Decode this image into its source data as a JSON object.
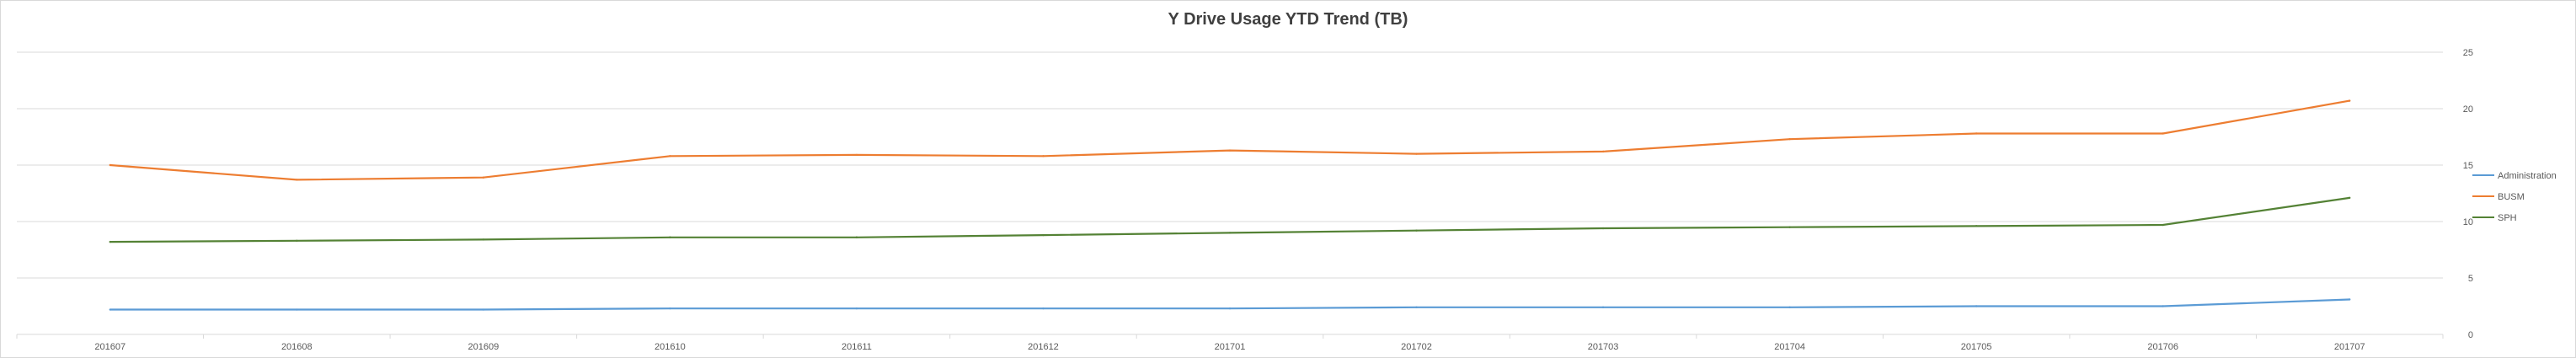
{
  "chart_data": {
    "type": "line",
    "title": "Y Drive Usage YTD Trend (TB)",
    "xlabel": "",
    "ylabel": "",
    "categories": [
      "201607",
      "201608",
      "201609",
      "201610",
      "201611",
      "201612",
      "201701",
      "201702",
      "201703",
      "201704",
      "201705",
      "201706",
      "201707"
    ],
    "y_axis": {
      "position": "right",
      "ylim": [
        0,
        25
      ],
      "ticks": [
        0,
        5,
        10,
        15,
        20,
        25
      ]
    },
    "grid": true,
    "legend": {
      "placement": "right"
    },
    "series": [
      {
        "name": "Administration",
        "color": "#5b9bd5",
        "values": [
          2.2,
          2.2,
          2.2,
          2.3,
          2.3,
          2.3,
          2.3,
          2.4,
          2.4,
          2.4,
          2.5,
          2.5,
          3.1
        ]
      },
      {
        "name": "BUSM",
        "color": "#ed7d31",
        "values": [
          15.0,
          13.7,
          13.9,
          15.8,
          15.9,
          15.8,
          16.3,
          16.0,
          16.2,
          17.3,
          17.8,
          17.8,
          20.7
        ]
      },
      {
        "name": "SPH",
        "color": "#548235",
        "values": [
          8.2,
          8.3,
          8.4,
          8.6,
          8.6,
          8.8,
          9.0,
          9.2,
          9.4,
          9.5,
          9.6,
          9.7,
          12.1
        ]
      }
    ]
  }
}
